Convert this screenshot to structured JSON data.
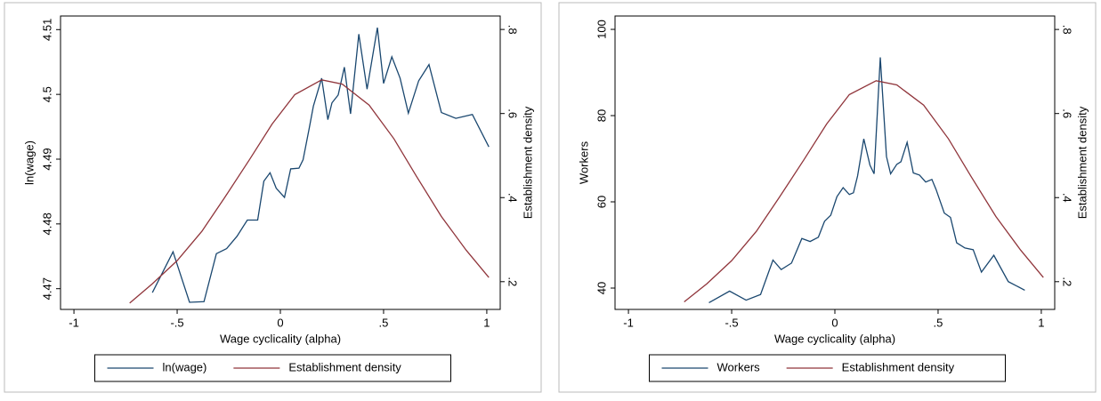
{
  "chart_data": [
    {
      "type": "line",
      "x_label": "Wage cyclicality (alpha)",
      "y_label": "ln(wage)",
      "y2_label": "Establishment density",
      "xlim": [
        -1.065,
        1.065
      ],
      "ylim": [
        4.4668,
        4.5121
      ],
      "y2lim": [
        0.134,
        0.832
      ],
      "xticks": [
        -1,
        {
          "value": -0.5,
          "label": "-.5"
        },
        0,
        {
          "value": 0.5,
          "label": ".5"
        },
        1
      ],
      "yticks": [
        4.47,
        4.48,
        4.49,
        4.5,
        4.51
      ],
      "y2ticks": [
        {
          "value": 0.2,
          "label": ".2"
        },
        {
          "value": 0.4,
          "label": ".4"
        },
        {
          "value": 0.6,
          "label": ".6"
        },
        {
          "value": 0.8,
          "label": ".8"
        }
      ],
      "series": [
        {
          "name": "ln(wage)",
          "color": "#1a476f",
          "x": [
            -0.62,
            -0.52,
            -0.44,
            -0.37,
            -0.31,
            -0.26,
            -0.21,
            -0.16,
            -0.11,
            -0.08,
            -0.05,
            -0.02,
            0.02,
            0.05,
            0.09,
            0.11,
            0.14,
            0.16,
            0.2,
            0.23,
            0.25,
            0.28,
            0.31,
            0.34,
            0.38,
            0.42,
            0.47,
            0.5,
            0.54,
            0.58,
            0.62,
            0.67,
            0.72,
            0.78,
            0.85,
            0.93,
            1.01
          ],
          "values": [
            4.4694,
            4.4757,
            4.4679,
            4.468,
            4.4754,
            4.4762,
            4.4781,
            4.4806,
            4.4806,
            4.4866,
            4.4879,
            4.4855,
            4.4841,
            4.4885,
            4.4886,
            4.4899,
            4.4948,
            4.4982,
            4.5025,
            4.4961,
            4.4987,
            4.4999,
            4.5042,
            4.497,
            4.5093,
            4.5008,
            4.5103,
            4.5017,
            4.5058,
            4.5025,
            4.4971,
            4.5021,
            4.5046,
            4.4972,
            4.4963,
            4.4969,
            4.4919
          ]
        },
        {
          "name": "Establishment density",
          "color": "#90353b",
          "axis": "y2",
          "x": [
            -0.73,
            -0.62,
            -0.5,
            -0.38,
            -0.27,
            -0.15,
            -0.04,
            0.07,
            0.2,
            0.3,
            0.43,
            0.55,
            0.66,
            0.78,
            0.9,
            1.01
          ],
          "values": [
            0.149,
            0.195,
            0.25,
            0.32,
            0.4,
            0.49,
            0.575,
            0.645,
            0.68,
            0.67,
            0.62,
            0.54,
            0.45,
            0.355,
            0.275,
            0.21
          ]
        }
      ]
    },
    {
      "type": "line",
      "x_label": "Wage cyclicality (alpha)",
      "y_label": "Workers",
      "y2_label": "Establishment density",
      "xlim": [
        -1.065,
        1.065
      ],
      "ylim": [
        35.05,
        103.1
      ],
      "y2lim": [
        0.134,
        0.832
      ],
      "xticks": [
        -1,
        {
          "value": -0.5,
          "label": "-.5"
        },
        0,
        {
          "value": 0.5,
          "label": ".5"
        },
        1
      ],
      "yticks": [
        40,
        60,
        80,
        100
      ],
      "y2ticks": [
        {
          "value": 0.2,
          "label": ".2"
        },
        {
          "value": 0.4,
          "label": ".4"
        },
        {
          "value": 0.6,
          "label": ".6"
        },
        {
          "value": 0.8,
          "label": ".8"
        }
      ],
      "series": [
        {
          "name": "Workers",
          "color": "#1a476f",
          "x": [
            -0.61,
            -0.51,
            -0.43,
            -0.36,
            -0.3,
            -0.26,
            -0.21,
            -0.16,
            -0.12,
            -0.08,
            -0.05,
            -0.02,
            0.01,
            0.04,
            0.07,
            0.09,
            0.11,
            0.14,
            0.17,
            0.19,
            0.22,
            0.25,
            0.27,
            0.3,
            0.32,
            0.35,
            0.38,
            0.41,
            0.44,
            0.47,
            0.49,
            0.53,
            0.56,
            0.59,
            0.63,
            0.67,
            0.71,
            0.77,
            0.84,
            0.92
          ],
          "values": [
            36.6,
            39.3,
            37.2,
            38.5,
            46.5,
            44.3,
            45.8,
            51.5,
            50.8,
            51.8,
            55.5,
            56.9,
            61.2,
            63.3,
            61.7,
            62.1,
            66,
            74.6,
            68.5,
            66.5,
            93.5,
            70.5,
            66.5,
            68.7,
            69.3,
            73.8,
            66.7,
            66.2,
            64.6,
            65.2,
            62.9,
            57.4,
            56.4,
            50.5,
            49.3,
            48.9,
            43.7,
            47.6,
            41.5,
            39.5
          ]
        },
        {
          "name": "Establishment density",
          "color": "#90353b",
          "axis": "y2",
          "x": [
            -0.73,
            -0.62,
            -0.5,
            -0.38,
            -0.27,
            -0.15,
            -0.04,
            0.07,
            0.2,
            0.3,
            0.43,
            0.55,
            0.66,
            0.78,
            0.9,
            1.01
          ],
          "values": [
            0.152,
            0.195,
            0.25,
            0.32,
            0.4,
            0.49,
            0.575,
            0.645,
            0.678,
            0.668,
            0.62,
            0.54,
            0.45,
            0.355,
            0.275,
            0.21
          ]
        }
      ]
    }
  ]
}
